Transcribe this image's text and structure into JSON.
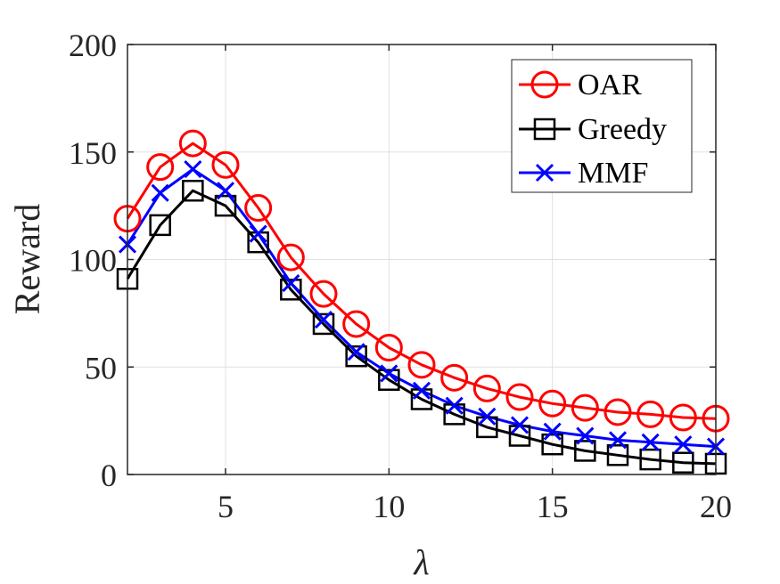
{
  "chart_data": {
    "type": "line",
    "xlabel": "λ",
    "ylabel": "Reward",
    "xlim": [
      2,
      20
    ],
    "ylim": [
      0,
      200
    ],
    "x_ticks": [
      5,
      10,
      15,
      20
    ],
    "y_ticks": [
      0,
      50,
      100,
      150,
      200
    ],
    "x_tick_labels": [
      "5",
      "10",
      "15",
      "20"
    ],
    "y_tick_labels": [
      "0",
      "50",
      "100",
      "150",
      "200"
    ],
    "grid": true,
    "legend_position": "top-right",
    "x": [
      2,
      3,
      4,
      5,
      6,
      7,
      8,
      9,
      10,
      11,
      12,
      13,
      14,
      15,
      16,
      17,
      18,
      19,
      20
    ],
    "series": [
      {
        "name": "OAR",
        "color": "#ff0000",
        "marker": "circle",
        "values": [
          119,
          143,
          154,
          144,
          124,
          101,
          84,
          70,
          59,
          51,
          45,
          40,
          36,
          33,
          31,
          29,
          28,
          26.5,
          26
        ]
      },
      {
        "name": "Greedy",
        "color": "#000000",
        "marker": "square",
        "values": [
          91,
          116,
          132,
          125,
          108,
          86,
          70,
          55,
          44,
          35,
          28,
          22,
          18,
          14,
          11,
          9,
          7,
          5.5,
          5
        ]
      },
      {
        "name": "MMF",
        "color": "#0000ff",
        "marker": "x",
        "values": [
          107,
          131,
          142,
          132,
          112,
          89,
          72,
          57,
          47,
          39,
          32,
          27,
          23,
          20,
          18,
          16,
          15,
          14,
          13
        ]
      }
    ]
  }
}
